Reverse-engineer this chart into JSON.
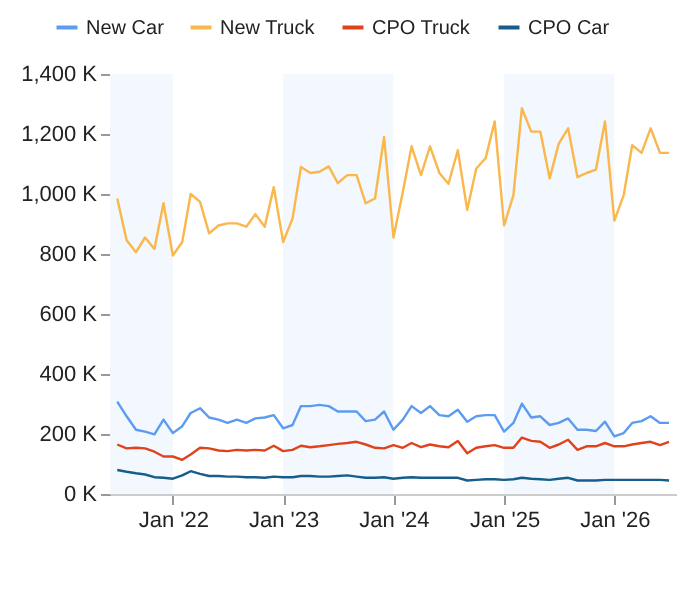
{
  "chart_data": {
    "type": "line",
    "legend": "top",
    "grid": false,
    "x": [
      "2021-07",
      "2021-08",
      "2021-09",
      "2021-10",
      "2021-11",
      "2021-12",
      "2022-01",
      "2022-02",
      "2022-03",
      "2022-04",
      "2022-05",
      "2022-06",
      "2022-07",
      "2022-08",
      "2022-09",
      "2022-10",
      "2022-11",
      "2022-12",
      "2023-01",
      "2023-02",
      "2023-03",
      "2023-04",
      "2023-05",
      "2023-06",
      "2023-07",
      "2023-08",
      "2023-09",
      "2023-10",
      "2023-11",
      "2023-12",
      "2024-01",
      "2024-02",
      "2024-03",
      "2024-04",
      "2024-05",
      "2024-06",
      "2024-07",
      "2024-08",
      "2024-09",
      "2024-10",
      "2024-11",
      "2024-12",
      "2025-01",
      "2025-02",
      "2025-03",
      "2025-04",
      "2025-05",
      "2025-06",
      "2025-07",
      "2025-08",
      "2025-09",
      "2025-10",
      "2025-11",
      "2025-12",
      "2026-01",
      "2026-02",
      "2026-03",
      "2026-04",
      "2026-05",
      "2026-06",
      "2026-07"
    ],
    "xlim": [
      "2021-06-07",
      "2026-07-24"
    ],
    "xticks": [
      {
        "value": "2022-01",
        "label": "Jan '22"
      },
      {
        "value": "2023-01",
        "label": "Jan '23"
      },
      {
        "value": "2024-01",
        "label": "Jan '24"
      },
      {
        "value": "2025-01",
        "label": "Jan '25"
      },
      {
        "value": "2026-01",
        "label": "Jan '26"
      }
    ],
    "ylim": [
      0,
      1400
    ],
    "yticks": [
      {
        "value": 0,
        "label": "0 K"
      },
      {
        "value": 200,
        "label": "200 K"
      },
      {
        "value": 400,
        "label": "400 K"
      },
      {
        "value": 600,
        "label": "600 K"
      },
      {
        "value": 800,
        "label": "800 K"
      },
      {
        "value": 1000,
        "label": "1,000 K"
      },
      {
        "value": 1200,
        "label": "1,200 K"
      },
      {
        "value": 1400,
        "label": "1,400 K"
      }
    ],
    "bands": [
      {
        "axis": "x",
        "from": "2021-06-07",
        "to": "2022-01",
        "color": "#f3f8fe"
      },
      {
        "axis": "x",
        "from": "2023-01",
        "to": "2024-01",
        "color": "#f3f8fe"
      },
      {
        "axis": "x",
        "from": "2025-01",
        "to": "2026-01",
        "color": "#f3f8fe"
      }
    ],
    "series": [
      {
        "name": "New Car",
        "color": "#5b9cf0",
        "values": [
          308,
          259,
          214,
          208,
          199,
          248,
          203,
          226,
          270,
          286,
          255,
          248,
          237,
          248,
          237,
          252,
          255,
          263,
          219,
          230,
          293,
          293,
          297,
          293,
          275,
          275,
          275,
          243,
          248,
          275,
          214,
          248,
          293,
          270,
          293,
          263,
          259,
          281,
          241,
          259,
          263,
          263,
          208,
          237,
          301,
          255,
          259,
          230,
          237,
          252,
          214,
          214,
          210,
          241,
          192,
          203,
          237,
          243,
          259,
          237,
          237
        ]
      },
      {
        "name": "New Truck",
        "color": "#f9b74c",
        "values": [
          985,
          846,
          806,
          855,
          817,
          969,
          795,
          840,
          1000,
          974,
          869,
          895,
          902,
          902,
          891,
          933,
          891,
          1023,
          840,
          918,
          1090,
          1070,
          1074,
          1092,
          1036,
          1063,
          1063,
          969,
          985,
          1190,
          855,
          1007,
          1159,
          1063,
          1159,
          1070,
          1034,
          1146,
          947,
          1085,
          1119,
          1242,
          895,
          996,
          1286,
          1208,
          1208,
          1052,
          1168,
          1219,
          1056,
          1070,
          1081,
          1242,
          911,
          996,
          1163,
          1137,
          1219,
          1137,
          1137
        ]
      },
      {
        "name": "CPO Truck",
        "color": "#e0421c",
        "values": [
          165,
          152,
          154,
          152,
          141,
          125,
          125,
          114,
          132,
          154,
          152,
          145,
          143,
          147,
          145,
          147,
          145,
          161,
          143,
          147,
          161,
          156,
          159,
          163,
          167,
          170,
          174,
          165,
          154,
          152,
          163,
          154,
          170,
          156,
          165,
          159,
          156,
          177,
          136,
          154,
          159,
          163,
          154,
          154,
          188,
          177,
          174,
          154,
          165,
          181,
          147,
          159,
          159,
          170,
          159,
          159,
          165,
          170,
          174,
          163,
          174
        ]
      },
      {
        "name": "CPO Car",
        "color": "#165d8c",
        "values": [
          80,
          74,
          69,
          65,
          56,
          54,
          51,
          62,
          76,
          67,
          60,
          60,
          58,
          58,
          56,
          56,
          54,
          58,
          56,
          56,
          60,
          60,
          58,
          58,
          60,
          62,
          58,
          54,
          54,
          56,
          51,
          54,
          56,
          54,
          54,
          54,
          54,
          54,
          45,
          47,
          49,
          49,
          47,
          49,
          54,
          51,
          49,
          47,
          51,
          54,
          45,
          45,
          45,
          47,
          47,
          47,
          47,
          47,
          47,
          47,
          45
        ]
      }
    ]
  }
}
